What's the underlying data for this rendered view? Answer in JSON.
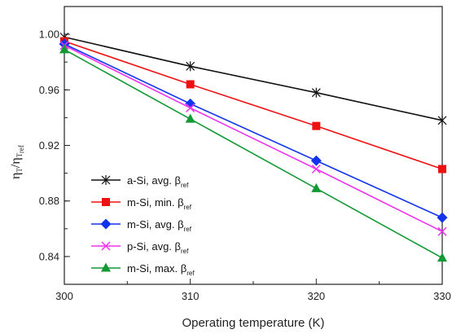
{
  "chart_data": {
    "type": "line",
    "xlabel": "Operating temperature (K)",
    "ylabel": {
      "main1": "η",
      "sub1": "T",
      "slash": "/",
      "main2": "η",
      "sub2": "T",
      "sub2b": "ref"
    },
    "x": [
      300,
      310,
      320,
      330
    ],
    "xlim": [
      300,
      330
    ],
    "ylim": [
      0.82,
      1.02
    ],
    "xticks": [
      300,
      310,
      320,
      330
    ],
    "yticks": [
      0.84,
      0.88,
      0.92,
      0.96,
      1.0
    ],
    "ytick_labels": [
      "0.84",
      "0.88",
      "0.92",
      "0.96",
      "1.00"
    ],
    "xtick_labels": [
      "300",
      "310",
      "320",
      "330"
    ],
    "grid": false,
    "legend_position": "bottom-left",
    "series": [
      {
        "name": "a-Si, avg. β",
        "sub": "ref",
        "color": "#111111",
        "marker": "asterisk",
        "values": [
          0.998,
          0.977,
          0.958,
          0.938
        ]
      },
      {
        "name": "m-Si, min. β",
        "sub": "ref",
        "color": "#ee1111",
        "marker": "square",
        "values": [
          0.995,
          0.964,
          0.934,
          0.903
        ]
      },
      {
        "name": "m-Si, avg. β",
        "sub": "ref",
        "color": "#1133ee",
        "marker": "diamond",
        "values": [
          0.993,
          0.95,
          0.909,
          0.868
        ]
      },
      {
        "name": "p-Si, avg. β",
        "sub": "ref",
        "color": "#ee33ee",
        "marker": "cross",
        "values": [
          0.992,
          0.947,
          0.903,
          0.858
        ]
      },
      {
        "name": "m-Si, max. β",
        "sub": "ref",
        "color": "#119933",
        "marker": "triangle",
        "values": [
          0.989,
          0.939,
          0.889,
          0.839
        ]
      }
    ]
  }
}
